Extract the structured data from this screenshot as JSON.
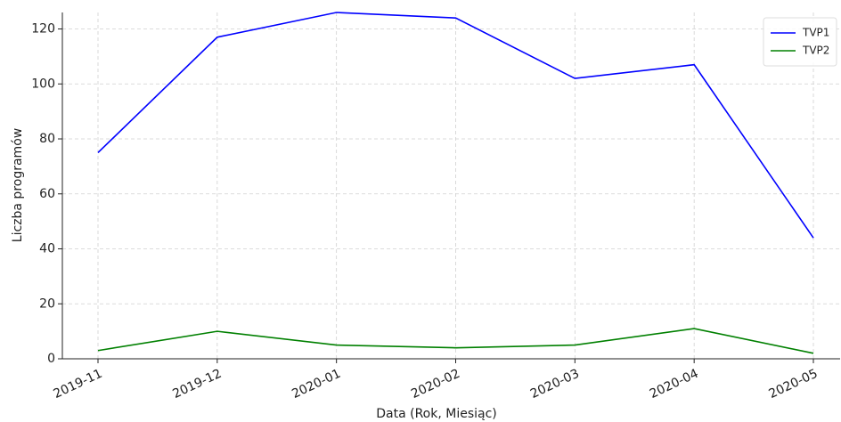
{
  "chart_data": {
    "type": "line",
    "xlabel": "Data (Rok, Miesiąc)",
    "ylabel": "Liczba programów",
    "categories": [
      "2019-11",
      "2019-12",
      "2020-01",
      "2020-02",
      "2020-03",
      "2020-04",
      "2020-05"
    ],
    "series": [
      {
        "name": "TVP1",
        "color": "#0000ff",
        "values": [
          75,
          117,
          126,
          124,
          102,
          107,
          44
        ]
      },
      {
        "name": "TVP2",
        "color": "#008000",
        "values": [
          3,
          10,
          5,
          4,
          5,
          11,
          2
        ]
      }
    ],
    "ylim": [
      0,
      126
    ],
    "yticks": [
      0,
      20,
      40,
      60,
      80,
      100,
      120
    ],
    "grid": true,
    "legend": "upper right"
  }
}
